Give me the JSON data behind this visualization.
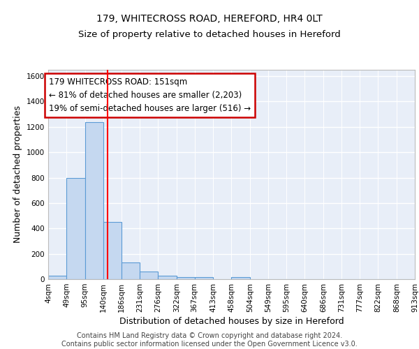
{
  "title1": "179, WHITECROSS ROAD, HEREFORD, HR4 0LT",
  "title2": "Size of property relative to detached houses in Hereford",
  "xlabel": "Distribution of detached houses by size in Hereford",
  "ylabel": "Number of detached properties",
  "bin_edges": [
    4,
    49,
    95,
    140,
    186,
    231,
    276,
    322,
    367,
    413,
    458,
    504,
    549,
    595,
    640,
    686,
    731,
    777,
    822,
    868,
    913
  ],
  "bar_heights": [
    25,
    800,
    1240,
    450,
    130,
    60,
    25,
    15,
    15,
    0,
    15,
    0,
    0,
    0,
    0,
    0,
    0,
    0,
    0,
    0
  ],
  "bar_color": "#c5d8f0",
  "bar_edge_color": "#5b9bd5",
  "red_line_x": 151,
  "ylim": [
    0,
    1650
  ],
  "yticks": [
    0,
    200,
    400,
    600,
    800,
    1000,
    1200,
    1400,
    1600
  ],
  "annotation_text": "179 WHITECROSS ROAD: 151sqm\n← 81% of detached houses are smaller (2,203)\n19% of semi-detached houses are larger (516) →",
  "annotation_box_color": "#ffffff",
  "annotation_box_edge_color": "#cc0000",
  "footer_text": "Contains HM Land Registry data © Crown copyright and database right 2024.\nContains public sector information licensed under the Open Government Licence v3.0.",
  "background_color": "#e8eef8",
  "grid_color": "#ffffff",
  "title1_fontsize": 10,
  "title2_fontsize": 9.5,
  "xlabel_fontsize": 9,
  "ylabel_fontsize": 9,
  "tick_fontsize": 7.5,
  "annotation_fontsize": 8.5,
  "footer_fontsize": 7
}
